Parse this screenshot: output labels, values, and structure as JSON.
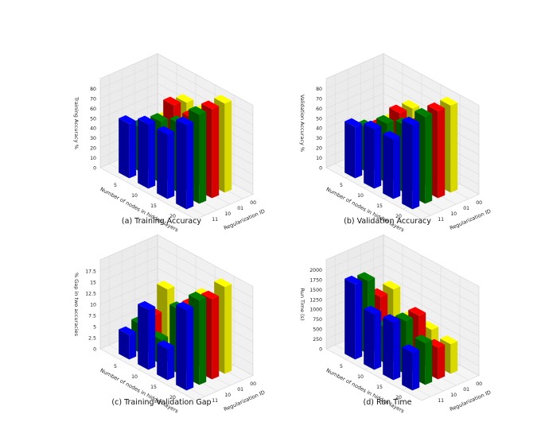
{
  "figure": {
    "series_colors": {
      "00": "#ffff00",
      "01": "#ff0000",
      "10": "#008000",
      "11": "#0000ff"
    },
    "shared": {
      "xlabel": "Number of nodes in hidden layers",
      "ylabel": "Regularization ID",
      "x_categories": [
        "5",
        "10",
        "15",
        "20"
      ],
      "y_categories": [
        "11",
        "10",
        "01",
        "00"
      ]
    }
  },
  "chart_data": [
    {
      "type": "bar3d",
      "caption": "(a) Training Accuracy",
      "zlabel": "Training Accuracy %",
      "zlim": [
        0,
        90
      ],
      "zticks": [
        0,
        10,
        20,
        30,
        40,
        50,
        60,
        70,
        80
      ],
      "categories": [
        "5",
        "10",
        "15",
        "20"
      ],
      "series": [
        {
          "name": "11",
          "color": "#0000ff",
          "values": [
            55,
            65,
            65,
            85
          ]
        },
        {
          "name": "10",
          "color": "#008000",
          "values": [
            45,
            62,
            70,
            90
          ]
        },
        {
          "name": "01",
          "color": "#ff0000",
          "values": [
            40,
            73,
            70,
            90
          ]
        },
        {
          "name": "00",
          "color": "#ffff00",
          "values": [
            42,
            70,
            70,
            90
          ]
        }
      ]
    },
    {
      "type": "bar3d",
      "caption": "(b) Validation Accuracy",
      "zlabel": "Validation Accuracy %",
      "zlim": [
        0,
        90
      ],
      "zticks": [
        0,
        10,
        20,
        30,
        40,
        50,
        60,
        70,
        80
      ],
      "categories": [
        "5",
        "10",
        "15",
        "20"
      ],
      "series": [
        {
          "name": "11",
          "color": "#0000ff",
          "values": [
            52,
            60,
            60,
            85
          ]
        },
        {
          "name": "10",
          "color": "#008000",
          "values": [
            45,
            60,
            68,
            88
          ]
        },
        {
          "name": "01",
          "color": "#ff0000",
          "values": [
            40,
            65,
            62,
            88
          ]
        },
        {
          "name": "00",
          "color": "#ffff00",
          "values": [
            40,
            64,
            62,
            88
          ]
        }
      ]
    },
    {
      "type": "bar3d",
      "caption": "(c) Training-Validation Gap",
      "zlabel": "% Gap in two accuracies",
      "zlim": [
        0,
        20
      ],
      "zticks": [
        0.0,
        2.5,
        5.0,
        7.5,
        10.0,
        12.5,
        15.0,
        17.5
      ],
      "categories": [
        "5",
        "10",
        "15",
        "20"
      ],
      "series": [
        {
          "name": "11",
          "color": "#0000ff",
          "values": [
            5.5,
            13.5,
            7.0,
            18.0
          ]
        },
        {
          "name": "10",
          "color": "#008000",
          "values": [
            6.5,
            5.5,
            14.5,
            19.0
          ]
        },
        {
          "name": "01",
          "color": "#ff0000",
          "values": [
            7.5,
            1.0,
            14.0,
            18.0
          ]
        },
        {
          "name": "00",
          "color": "#ffff00",
          "values": [
            12.0,
            3.5,
            15.0,
            19.5
          ]
        }
      ]
    },
    {
      "type": "bar3d",
      "caption": "(d) Run Time",
      "zlabel": "Run Time (s)",
      "zlim": [
        0,
        2250
      ],
      "zticks": [
        0,
        250,
        500,
        750,
        1000,
        1250,
        1500,
        1750,
        2000
      ],
      "categories": [
        "5",
        "10",
        "15",
        "20"
      ],
      "series": [
        {
          "name": "11",
          "color": "#0000ff",
          "values": [
            1900,
            1400,
            1450,
            950
          ]
        },
        {
          "name": "10",
          "color": "#008000",
          "values": [
            1850,
            900,
            1350,
            1050
          ]
        },
        {
          "name": "01",
          "color": "#ff0000",
          "values": [
            1300,
            850,
            1350,
            800
          ]
        },
        {
          "name": "00",
          "color": "#ffff00",
          "values": [
            1350,
            850,
            850,
            750
          ]
        }
      ]
    }
  ]
}
